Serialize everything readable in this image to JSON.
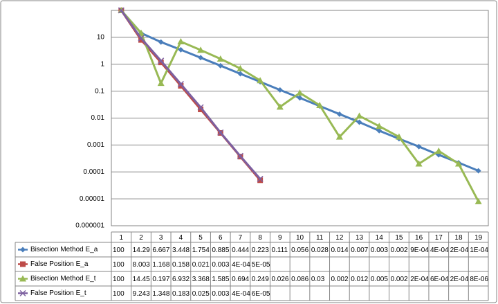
{
  "chart_data": {
    "type": "line",
    "log_scale": true,
    "grid": true,
    "categories": [
      "1",
      "2",
      "3",
      "4",
      "5",
      "6",
      "7",
      "8",
      "9",
      "10",
      "11",
      "12",
      "13",
      "14",
      "15",
      "16",
      "17",
      "18",
      "19"
    ],
    "ylim": [
      1e-06,
      100
    ],
    "yticks": [
      1e-06,
      1e-05,
      0.0001,
      0.001,
      0.01,
      0.1,
      1,
      10
    ],
    "series": [
      {
        "name": "Bisection Method E_a",
        "color": "#4a7ebb",
        "marker": "diamond",
        "values": [
          100,
          14.29,
          6.667,
          3.448,
          1.754,
          0.885,
          0.444,
          0.223,
          0.111,
          0.056,
          0.028,
          0.014,
          0.007,
          0.0034,
          0.0017,
          0.00087,
          0.00043,
          0.00022,
          0.00011
        ],
        "value_labels": [
          "100",
          "14.29",
          "6.667",
          "3.448",
          "1.754",
          "0.885",
          "0.444",
          "0.223",
          "0.111",
          "0.056",
          "0.028",
          "0.014",
          "0.007",
          "0.003",
          "0.002",
          "9E-04",
          "4E-04",
          "2E-04",
          "1E-04"
        ]
      },
      {
        "name": "False Position E_a",
        "color": "#be4b48",
        "marker": "square",
        "values": [
          100,
          8.003,
          1.168,
          0.158,
          0.021,
          0.0028,
          0.00037,
          4.9e-05,
          null,
          null,
          null,
          null,
          null,
          null,
          null,
          null,
          null,
          null,
          null
        ],
        "value_labels": [
          "100",
          "8.003",
          "1.168",
          "0.158",
          "0.021",
          "0.003",
          "4E-04",
          "5E-05",
          null,
          null,
          null,
          null,
          null,
          null,
          null,
          null,
          null,
          null,
          null
        ]
      },
      {
        "name": "Bisection Method E_t",
        "color": "#98b954",
        "marker": "triangle",
        "values": [
          100,
          14.45,
          0.197,
          6.932,
          3.368,
          1.585,
          0.694,
          0.249,
          0.026,
          0.086,
          0.03,
          0.002,
          0.012,
          0.005,
          0.002,
          0.0002,
          0.0006,
          0.0002,
          8e-06
        ],
        "value_labels": [
          "100",
          "14.45",
          "0.197",
          "6.932",
          "3.368",
          "1.585",
          "0.694",
          "0.249",
          "0.026",
          "0.086",
          "0.03",
          "0.002",
          "0.012",
          "0.005",
          "0.002",
          "2E-04",
          "6E-04",
          "2E-04",
          "8E-06"
        ]
      },
      {
        "name": "False Position E_t",
        "color": "#7d60a0",
        "marker": "x",
        "values": [
          100,
          9.243,
          1.348,
          0.183,
          0.025,
          0.0029,
          0.00039,
          5.5e-05,
          null,
          null,
          null,
          null,
          null,
          null,
          null,
          null,
          null,
          null,
          null
        ],
        "value_labels": [
          "100",
          "9.243",
          "1.348",
          "0.183",
          "0.025",
          "0.003",
          "4E-04",
          "6E-05",
          null,
          null,
          null,
          null,
          null,
          null,
          null,
          null,
          null,
          null,
          null
        ]
      }
    ]
  }
}
